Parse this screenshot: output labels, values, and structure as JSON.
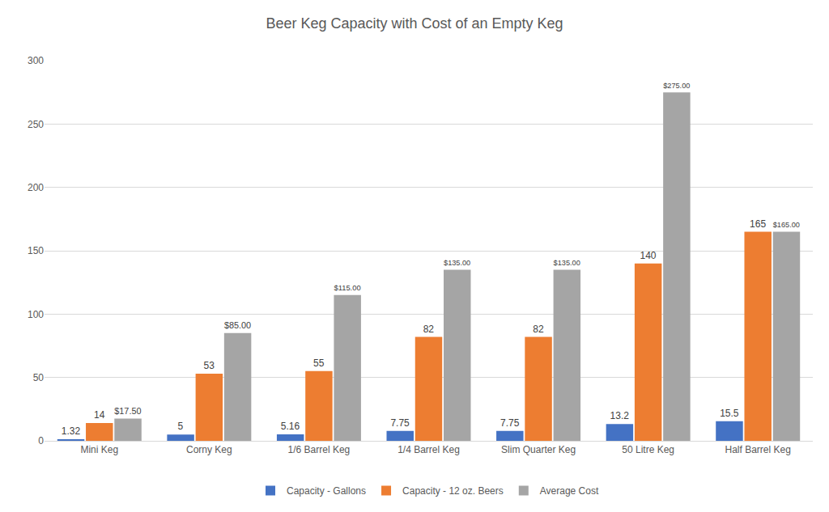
{
  "chart_data": {
    "type": "bar",
    "title": "Beer Keg Capacity with Cost of an Empty Keg",
    "categories": [
      "Mini Keg",
      "Corny Keg",
      "1/6 Barrel Keg",
      "1/4 Barrel Keg",
      "Slim Quarter Keg",
      "50 Litre Keg",
      "Half Barrel Keg"
    ],
    "series": [
      {
        "name": "Capacity - Gallons",
        "color": "#4472c4",
        "values": [
          1.32,
          5,
          5.16,
          7.75,
          7.75,
          13.2,
          15.5
        ]
      },
      {
        "name": "Capacity - 12 oz. Beers",
        "color": "#ed7d31",
        "values": [
          14,
          53,
          55,
          82,
          82,
          140,
          165
        ]
      },
      {
        "name": "Average Cost",
        "color": "#a5a5a5",
        "values": [
          17.5,
          85,
          115,
          135,
          135,
          275,
          165
        ],
        "value_labels": [
          "$17.50",
          "$85.00",
          "$115.00",
          "$135.00",
          "$135.00",
          "$275.00",
          "$165.00"
        ]
      }
    ],
    "ylim": [
      0,
      300
    ],
    "yticks": [
      0,
      50,
      100,
      150,
      200,
      250,
      300
    ],
    "grid": true,
    "legend": "bottom",
    "data_labels": true
  }
}
